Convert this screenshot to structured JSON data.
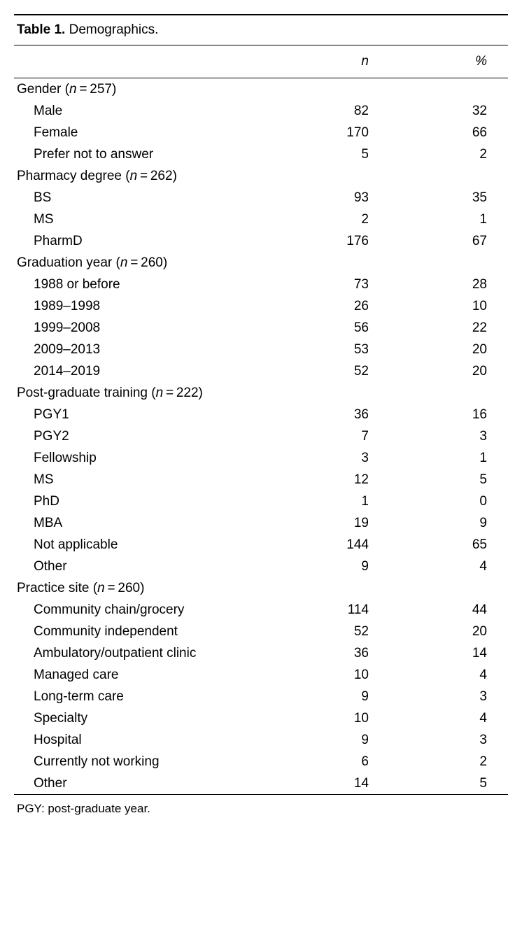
{
  "title_prefix": "Table 1.",
  "title_rest": " Demographics.",
  "columns": {
    "label": "",
    "n": "n",
    "pct": "%"
  },
  "sections": [
    {
      "label_pre": "Gender (",
      "n_value": "257",
      "rows": [
        {
          "label": "Male",
          "n": "82",
          "pct": "32"
        },
        {
          "label": "Female",
          "n": "170",
          "pct": "66"
        },
        {
          "label": "Prefer not to answer",
          "n": "5",
          "pct": "2"
        }
      ]
    },
    {
      "label_pre": "Pharmacy degree (",
      "n_value": "262",
      "rows": [
        {
          "label": "BS",
          "n": "93",
          "pct": "35"
        },
        {
          "label": "MS",
          "n": "2",
          "pct": "1"
        },
        {
          "label": "PharmD",
          "n": "176",
          "pct": "67"
        }
      ]
    },
    {
      "label_pre": "Graduation year (",
      "n_value": "260",
      "rows": [
        {
          "label": "1988 or before",
          "n": "73",
          "pct": "28"
        },
        {
          "label": "1989–1998",
          "n": "26",
          "pct": "10"
        },
        {
          "label": "1999–2008",
          "n": "56",
          "pct": "22"
        },
        {
          "label": "2009–2013",
          "n": "53",
          "pct": "20"
        },
        {
          "label": "2014–2019",
          "n": "52",
          "pct": "20"
        }
      ]
    },
    {
      "label_pre": "Post-graduate training (",
      "n_value": "222",
      "rows": [
        {
          "label": "PGY1",
          "n": "36",
          "pct": "16"
        },
        {
          "label": "PGY2",
          "n": "7",
          "pct": "3"
        },
        {
          "label": "Fellowship",
          "n": "3",
          "pct": "1"
        },
        {
          "label": "MS",
          "n": "12",
          "pct": "5"
        },
        {
          "label": "PhD",
          "n": "1",
          "pct": "0"
        },
        {
          "label": "MBA",
          "n": "19",
          "pct": "9"
        },
        {
          "label": "Not applicable",
          "n": "144",
          "pct": "65"
        },
        {
          "label": "Other",
          "n": "9",
          "pct": "4"
        }
      ]
    },
    {
      "label_pre": "Practice site (",
      "n_value": "260",
      "rows": [
        {
          "label": "Community chain/grocery",
          "n": "114",
          "pct": "44"
        },
        {
          "label": "Community independent",
          "n": "52",
          "pct": "20"
        },
        {
          "label": "Ambulatory/outpatient clinic",
          "n": "36",
          "pct": "14"
        },
        {
          "label": "Managed care",
          "n": "10",
          "pct": "4"
        },
        {
          "label": "Long-term care",
          "n": "9",
          "pct": "3"
        },
        {
          "label": "Specialty",
          "n": "10",
          "pct": "4"
        },
        {
          "label": "Hospital",
          "n": "9",
          "pct": "3"
        },
        {
          "label": "Currently not working",
          "n": "6",
          "pct": "2"
        },
        {
          "label": "Other",
          "n": "14",
          "pct": "5"
        }
      ]
    }
  ],
  "n_letter": "n",
  "n_eq": " = ",
  "section_close": ")",
  "footnote": "PGY: post-graduate year."
}
